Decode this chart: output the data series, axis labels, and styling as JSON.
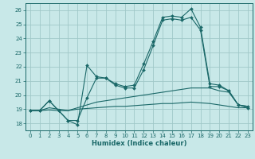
{
  "title": "",
  "xlabel": "Humidex (Indice chaleur)",
  "bg_color": "#c8e8e8",
  "grid_color": "#a0c8c8",
  "line_color": "#1a6868",
  "xlim": [
    -0.5,
    23.5
  ],
  "ylim": [
    17.5,
    26.5
  ],
  "yticks": [
    18,
    19,
    20,
    21,
    22,
    23,
    24,
    25,
    26
  ],
  "xticks": [
    0,
    1,
    2,
    3,
    4,
    5,
    6,
    7,
    8,
    9,
    10,
    11,
    12,
    13,
    14,
    15,
    16,
    17,
    18,
    19,
    20,
    21,
    22,
    23
  ],
  "series1_x": [
    0,
    1,
    2,
    3,
    4,
    5,
    6,
    7,
    8,
    9,
    10,
    11,
    12,
    13,
    14,
    15,
    16,
    17,
    18,
    19,
    20,
    21,
    22,
    23
  ],
  "series1_y": [
    18.9,
    18.9,
    19.6,
    18.9,
    18.2,
    17.9,
    22.1,
    21.3,
    21.2,
    20.8,
    20.6,
    20.7,
    22.2,
    23.8,
    25.5,
    25.6,
    25.5,
    26.1,
    24.8,
    20.8,
    20.7,
    20.3,
    19.3,
    19.2
  ],
  "series2_x": [
    0,
    1,
    2,
    3,
    4,
    5,
    6,
    7,
    8,
    9,
    10,
    11,
    12,
    13,
    14,
    15,
    16,
    17,
    18,
    19,
    20,
    21,
    22,
    23
  ],
  "series2_y": [
    18.9,
    18.9,
    19.6,
    18.9,
    18.2,
    18.2,
    19.8,
    21.2,
    21.2,
    20.7,
    20.5,
    20.5,
    21.8,
    23.5,
    25.3,
    25.4,
    25.3,
    25.5,
    24.6,
    20.6,
    20.6,
    20.3,
    19.3,
    19.1
  ],
  "series3_x": [
    0,
    1,
    2,
    3,
    4,
    5,
    6,
    7,
    8,
    9,
    10,
    11,
    12,
    13,
    14,
    15,
    16,
    17,
    18,
    19,
    20,
    21,
    22,
    23
  ],
  "series3_y": [
    18.9,
    18.9,
    19.1,
    19.0,
    18.9,
    19.1,
    19.3,
    19.5,
    19.6,
    19.7,
    19.8,
    19.9,
    20.0,
    20.1,
    20.2,
    20.3,
    20.4,
    20.5,
    20.5,
    20.5,
    20.3,
    20.2,
    19.3,
    19.2
  ],
  "series4_x": [
    0,
    1,
    2,
    3,
    4,
    5,
    6,
    7,
    8,
    9,
    10,
    11,
    12,
    13,
    14,
    15,
    16,
    17,
    18,
    19,
    20,
    21,
    22,
    23
  ],
  "series4_y": [
    18.9,
    18.9,
    18.95,
    18.9,
    18.9,
    19.0,
    19.05,
    19.1,
    19.15,
    19.2,
    19.2,
    19.25,
    19.3,
    19.35,
    19.4,
    19.4,
    19.45,
    19.5,
    19.45,
    19.4,
    19.3,
    19.2,
    19.1,
    19.1
  ]
}
